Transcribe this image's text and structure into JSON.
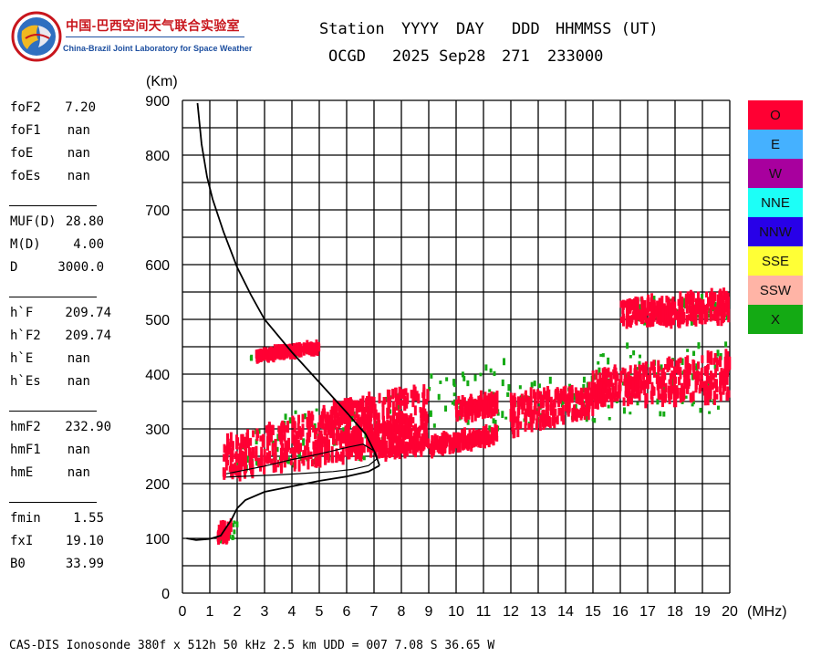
{
  "logo": {
    "cn": "中国-巴西空间天气联合实验室",
    "en": "China-Brazil Joint Laboratory for Space Weather"
  },
  "header": {
    "columns": [
      "Station",
      "YYYY",
      "DAY",
      "DDD",
      "HHMMSS (UT)"
    ],
    "values": [
      "OCGD",
      "2025 Sep28",
      "271",
      "233000"
    ]
  },
  "params": {
    "group1": [
      {
        "label": "foF2",
        "value": "7.20"
      },
      {
        "label": "foF1",
        "value": "nan"
      },
      {
        "label": "foE",
        "value": "nan"
      },
      {
        "label": "foEs",
        "value": "nan"
      }
    ],
    "group2": [
      {
        "label": "MUF(D)",
        "value": "28.80"
      },
      {
        "label": "M(D)",
        "value": "4.00"
      },
      {
        "label": "D",
        "value": "3000.0"
      }
    ],
    "group3": [
      {
        "label": "h`F",
        "value": "209.74"
      },
      {
        "label": "h`F2",
        "value": "209.74"
      },
      {
        "label": "h`E",
        "value": "nan"
      },
      {
        "label": "h`Es",
        "value": "nan"
      }
    ],
    "group4": [
      {
        "label": "hmF2",
        "value": "232.90"
      },
      {
        "label": "hmF1",
        "value": "nan"
      },
      {
        "label": "hmE",
        "value": "nan"
      }
    ],
    "group5": [
      {
        "label": "fmin",
        "value": "1.55"
      },
      {
        "label": "fxI",
        "value": "19.10"
      },
      {
        "label": "B0",
        "value": "33.99"
      }
    ]
  },
  "legend": [
    {
      "label": "O",
      "color": "#ff0033"
    },
    {
      "label": "E",
      "color": "#45b1ff"
    },
    {
      "label": "W",
      "color": "#a8009e"
    },
    {
      "label": "NNE",
      "color": "#1cfff7"
    },
    {
      "label": "NNW",
      "color": "#2800e8"
    },
    {
      "label": "SSE",
      "color": "#ffff36"
    },
    {
      "label": "SSW",
      "color": "#ffb4a6"
    },
    {
      "label": "X",
      "color": "#14aa14"
    }
  ],
  "footer": "CAS-DIS Ionosonde 380f x 512h 50 kHz 2.5 km UDD = 007 7.08 S 36.65 W",
  "chart_data": {
    "type": "scatter",
    "title": "",
    "xlabel": "(MHz)",
    "ylabel": "(Km)",
    "xlim": [
      0,
      20
    ],
    "ylim": [
      0,
      900
    ],
    "x_ticks": [
      0,
      1,
      2,
      3,
      4,
      5,
      6,
      7,
      8,
      9,
      10,
      11,
      12,
      13,
      14,
      15,
      16,
      17,
      18,
      19,
      20
    ],
    "y_ticks": [
      0,
      100,
      200,
      300,
      400,
      500,
      600,
      700,
      800,
      900
    ],
    "grid": true,
    "legend_placement": "right",
    "series": [
      {
        "name": "O",
        "color": "#ff0033",
        "regions": [
          {
            "x": [
              1.5,
              7.2
            ],
            "y_low": [
              212,
              255
            ],
            "y_high": [
              280,
              360
            ]
          },
          {
            "x": [
              5.0,
              9.0
            ],
            "y_low": [
              240,
              260
            ],
            "y_high": [
              340,
              380
            ]
          },
          {
            "x": [
              7.0,
              9.0
            ],
            "y_low": [
              250,
              260
            ],
            "y_high": [
              300,
              330
            ]
          },
          {
            "x": [
              9.0,
              11.5
            ],
            "y_low": [
              255,
              280
            ],
            "y_high": [
              280,
              300
            ]
          },
          {
            "x": [
              10.0,
              11.5
            ],
            "y_low": [
              320,
              330
            ],
            "y_high": [
              355,
              360
            ]
          },
          {
            "x": [
              12.0,
              15.0
            ],
            "y_low": [
              290,
              330
            ],
            "y_high": [
              360,
              380
            ]
          },
          {
            "x": [
              15.0,
              20.0
            ],
            "y_low": [
              345,
              355
            ],
            "y_high": [
              400,
              440
            ]
          },
          {
            "x": [
              16.0,
              20.0
            ],
            "y_low": [
              490,
              500
            ],
            "y_high": [
              530,
              550
            ]
          },
          {
            "x": [
              1.3,
              1.8
            ],
            "y_low": [
              95,
              100
            ],
            "y_high": [
              125,
              130
            ]
          },
          {
            "x": [
              2.7,
              5.0
            ],
            "y_low": [
              430,
              445
            ],
            "y_high": [
              438,
              452
            ]
          }
        ]
      },
      {
        "name": "X",
        "color": "#14aa14",
        "regions": [
          {
            "x": [
              1.2,
              2.0
            ],
            "y_low": [
              90,
              95
            ],
            "y_high": [
              110,
              140
            ]
          },
          {
            "x": [
              2.5,
              5.0
            ],
            "y_low": [
              425,
              440
            ],
            "y_high": [
              440,
              455
            ]
          },
          {
            "x": [
              2.0,
              8.0
            ],
            "y_low": [
              225,
              250
            ],
            "y_high": [
              300,
              390
            ]
          },
          {
            "x": [
              9.0,
              12.0
            ],
            "y_low": [
              290,
              300
            ],
            "y_high": [
              400,
              430
            ]
          },
          {
            "x": [
              12.0,
              15.0
            ],
            "y_low": [
              300,
              320
            ],
            "y_high": [
              380,
              400
            ]
          },
          {
            "x": [
              15.0,
              20.0
            ],
            "y_low": [
              315,
              330
            ],
            "y_high": [
              450,
              460
            ]
          },
          {
            "x": [
              16.5,
              20.0
            ],
            "y_low": [
              490,
              495
            ],
            "y_high": [
              540,
              545
            ]
          }
        ]
      }
    ],
    "profile_curves": [
      {
        "name": "true-height-profile",
        "points": [
          [
            0.55,
            895
          ],
          [
            0.6,
            870
          ],
          [
            0.7,
            820
          ],
          [
            0.9,
            760
          ],
          [
            1.1,
            720
          ],
          [
            1.5,
            660
          ],
          [
            2.0,
            595
          ],
          [
            2.5,
            545
          ],
          [
            3.0,
            500
          ],
          [
            4.0,
            440
          ],
          [
            5.0,
            385
          ],
          [
            6.0,
            330
          ],
          [
            6.7,
            290
          ],
          [
            7.05,
            255
          ],
          [
            7.2,
            233
          ]
        ]
      },
      {
        "name": "bottomside-profile",
        "points": [
          [
            0.15,
            100
          ],
          [
            0.5,
            97
          ],
          [
            1.0,
            99
          ],
          [
            1.4,
            105
          ],
          [
            1.8,
            135
          ],
          [
            2.0,
            155
          ],
          [
            2.3,
            170
          ],
          [
            3.0,
            185
          ],
          [
            4.0,
            195
          ],
          [
            5.0,
            205
          ],
          [
            6.0,
            213
          ],
          [
            6.8,
            222
          ],
          [
            7.2,
            233
          ]
        ]
      },
      {
        "name": "virtual-height-trace",
        "points": [
          [
            1.6,
            212
          ],
          [
            2.5,
            214
          ],
          [
            3.5,
            216
          ],
          [
            4.5,
            219
          ],
          [
            5.5,
            222
          ],
          [
            6.2,
            226
          ],
          [
            6.8,
            233
          ],
          [
            7.1,
            245
          ],
          [
            7.0,
            260
          ],
          [
            6.6,
            272
          ],
          [
            6.0,
            266
          ],
          [
            5.0,
            254
          ],
          [
            4.0,
            244
          ],
          [
            3.0,
            232
          ],
          [
            2.0,
            222
          ],
          [
            1.6,
            218
          ]
        ]
      }
    ]
  }
}
